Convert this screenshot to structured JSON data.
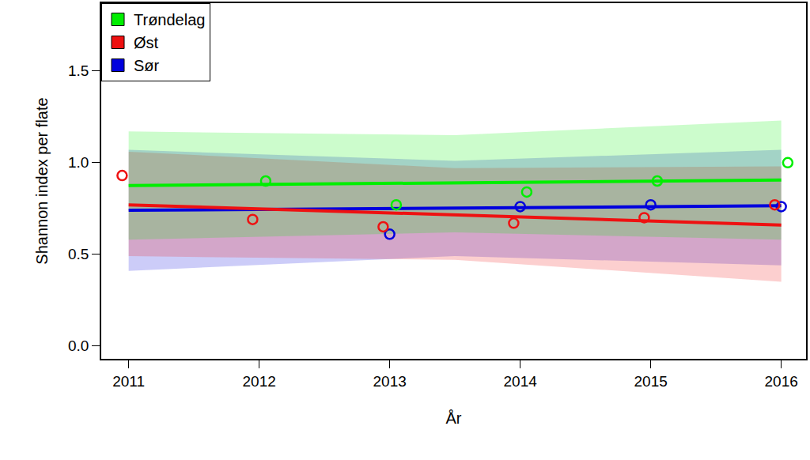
{
  "chart_data": {
    "type": "scatter",
    "x_label": "År",
    "y_label": "Shannon index per flate",
    "xlim": [
      2010.79,
      2016.19
    ],
    "ylim": [
      -0.07,
      1.87
    ],
    "xticks": [
      2011,
      2012,
      2013,
      2014,
      2015,
      2016
    ],
    "yticks": [
      {
        "value": 0,
        "label": "0.0"
      },
      {
        "value": 0.5,
        "label": "0.5"
      },
      {
        "value": 1,
        "label": "1.0"
      },
      {
        "value": 1.5,
        "label": "1.5"
      }
    ],
    "grid": false,
    "legend": "top-left",
    "fit_x": [
      2011,
      2013.5,
      2016
    ],
    "series": [
      {
        "name": "Sør",
        "color": "#0000dd",
        "x": [
          2013.0,
          2014.0,
          2015.0,
          2016.0
        ],
        "values": [
          0.61,
          0.76,
          0.77,
          0.76
        ],
        "fit": [
          0.74,
          0.752,
          0.765
        ],
        "lower": [
          0.41,
          0.49,
          0.44
        ],
        "upper": [
          1.07,
          1.01,
          1.07
        ]
      },
      {
        "name": "Øst",
        "color": "#ee1111",
        "x": [
          2010.95,
          2011.95,
          2012.95,
          2013.95,
          2014.95,
          2015.95
        ],
        "values": [
          0.93,
          0.69,
          0.65,
          0.67,
          0.7,
          0.77
        ],
        "fit": [
          0.77,
          0.715,
          0.66
        ],
        "lower": [
          0.49,
          0.47,
          0.35
        ],
        "upper": [
          1.06,
          0.97,
          0.98
        ]
      },
      {
        "name": "Trøndelag",
        "color": "#00ee00",
        "x": [
          2012.05,
          2013.05,
          2014.05,
          2015.05,
          2016.05
        ],
        "values": [
          0.9,
          0.77,
          0.84,
          0.9,
          1.0
        ],
        "fit": [
          0.875,
          0.89,
          0.905
        ],
        "lower": [
          0.58,
          0.62,
          0.58
        ],
        "upper": [
          1.17,
          1.15,
          1.23
        ]
      }
    ]
  }
}
